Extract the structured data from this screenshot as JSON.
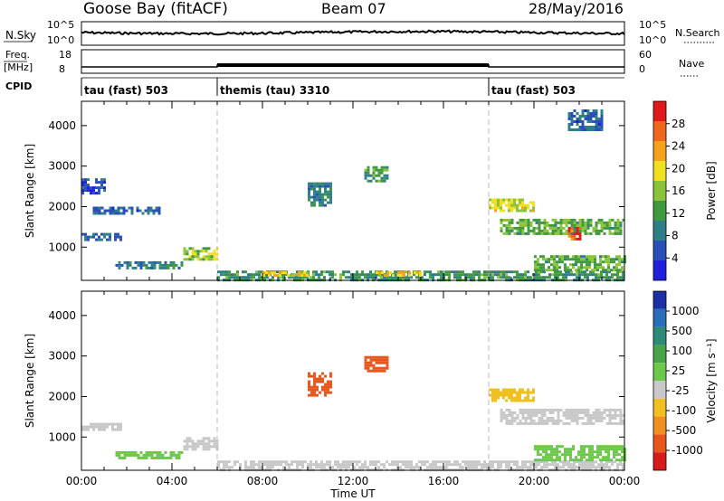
{
  "header": {
    "title_left": "Goose Bay (fitACF)",
    "title_center": "Beam 07",
    "title_right": "28/May/2016"
  },
  "nsky": {
    "label": "N.Sky",
    "left_ticks": [
      "10^5",
      "10^0"
    ],
    "right_label": "N.Search",
    "right_ticks": [
      "10^5",
      "10^0"
    ]
  },
  "freq": {
    "label_line1": "Freq.",
    "label_line2": "[MHz]",
    "left_ticks": [
      "18",
      "8"
    ],
    "right_label": "Nave",
    "right_ticks": [
      "60",
      "0"
    ]
  },
  "cpid": {
    "label": "CPID",
    "segments": [
      {
        "label": "tau (fast) 503",
        "start_h": 0
      },
      {
        "label": "themis (tau) 3310",
        "start_h": 6
      },
      {
        "label": "tau (fast) 503",
        "start_h": 18
      }
    ]
  },
  "power_panel": {
    "ylabel": "Slant Range [km]",
    "yticks": [
      "1000",
      "2000",
      "3000",
      "4000"
    ],
    "colorbar_label": "Power [dB]",
    "colorbar_ticks": [
      "4",
      "8",
      "12",
      "16",
      "20",
      "24",
      "28"
    ],
    "colorbar_colors": [
      "#1f1fdc",
      "#2a50b8",
      "#2e7f88",
      "#3f9a3f",
      "#8bc43a",
      "#f0e020",
      "#f5a31c",
      "#f0661c",
      "#e01a1a"
    ]
  },
  "velocity_panel": {
    "ylabel": "Slant Range [km]",
    "yticks": [
      "1000",
      "2000",
      "3000",
      "4000"
    ],
    "colorbar_label": "Velocity [m s⁻¹]",
    "colorbar_ticks": [
      "1000",
      "500",
      "100",
      "25",
      "-25",
      "-100",
      "-500",
      "-1000"
    ],
    "colorbar_colors": [
      "#1d2fa6",
      "#2a6db8",
      "#2e8a78",
      "#48a447",
      "#6cc84a",
      "#c8c8c8",
      "#f0c020",
      "#f09020",
      "#e8561c",
      "#d81a1a"
    ]
  },
  "xaxis": {
    "label": "Time UT",
    "ticks": [
      "00:00",
      "04:00",
      "08:00",
      "12:00",
      "16:00",
      "20:00",
      "00:00"
    ]
  },
  "chart_data": {
    "type": "heatmap",
    "xlabel": "Time UT",
    "ylabel": "Slant Range [km]",
    "xlim_hours": [
      0,
      24
    ],
    "ylim_km": [
      180,
      4600
    ],
    "vertical_markers_h": [
      6,
      18
    ],
    "power_echo_regions": [
      {
        "t": [
          0.0,
          1.8
        ],
        "r": [
          1150,
          1350
        ],
        "power_db": 8
      },
      {
        "t": [
          0.5,
          3.5
        ],
        "r": [
          1800,
          2000
        ],
        "power_db": 8
      },
      {
        "t": [
          0.0,
          1.0
        ],
        "r": [
          2300,
          2700
        ],
        "power_db": 6
      },
      {
        "t": [
          1.5,
          4.5
        ],
        "r": [
          450,
          650
        ],
        "power_db": 10
      },
      {
        "t": [
          4.5,
          6.0
        ],
        "r": [
          700,
          1000
        ],
        "power_db": 16
      },
      {
        "t": [
          6.0,
          24.0
        ],
        "r": [
          200,
          420
        ],
        "power_db": 12
      },
      {
        "t": [
          8.0,
          10.0
        ],
        "r": [
          300,
          400
        ],
        "power_db": 20
      },
      {
        "t": [
          13.0,
          15.0
        ],
        "r": [
          300,
          400
        ],
        "power_db": 20
      },
      {
        "t": [
          10.0,
          11.0
        ],
        "r": [
          2000,
          2600
        ],
        "power_db": 10
      },
      {
        "t": [
          12.5,
          13.5
        ],
        "r": [
          2600,
          3000
        ],
        "power_db": 12
      },
      {
        "t": [
          18.0,
          20.0
        ],
        "r": [
          1900,
          2200
        ],
        "power_db": 18
      },
      {
        "t": [
          18.5,
          24.0
        ],
        "r": [
          1300,
          1700
        ],
        "power_db": 14
      },
      {
        "t": [
          21.5,
          22.0
        ],
        "r": [
          1200,
          1500
        ],
        "power_db": 26
      },
      {
        "t": [
          20.0,
          24.0
        ],
        "r": [
          400,
          800
        ],
        "power_db": 14
      },
      {
        "t": [
          21.5,
          23.0
        ],
        "r": [
          3900,
          4400
        ],
        "power_db": 8
      }
    ],
    "velocity_echo_regions": [
      {
        "t": [
          0.0,
          1.8
        ],
        "r": [
          1150,
          1350
        ],
        "vel": 0
      },
      {
        "t": [
          4.5,
          6.0
        ],
        "r": [
          700,
          1000
        ],
        "vel": 0
      },
      {
        "t": [
          6.0,
          24.0
        ],
        "r": [
          200,
          420
        ],
        "vel": 0
      },
      {
        "t": [
          10.0,
          11.0
        ],
        "r": [
          2000,
          2600
        ],
        "vel": -400
      },
      {
        "t": [
          12.5,
          13.5
        ],
        "r": [
          2600,
          3000
        ],
        "vel": -450
      },
      {
        "t": [
          1.5,
          4.5
        ],
        "r": [
          450,
          650
        ],
        "vel": 80
      },
      {
        "t": [
          18.5,
          24.0
        ],
        "r": [
          1300,
          1700
        ],
        "vel": 0
      },
      {
        "t": [
          18.0,
          20.0
        ],
        "r": [
          1900,
          2200
        ],
        "vel": -30
      },
      {
        "t": [
          20.0,
          24.0
        ],
        "r": [
          400,
          800
        ],
        "vel": 60
      }
    ]
  }
}
